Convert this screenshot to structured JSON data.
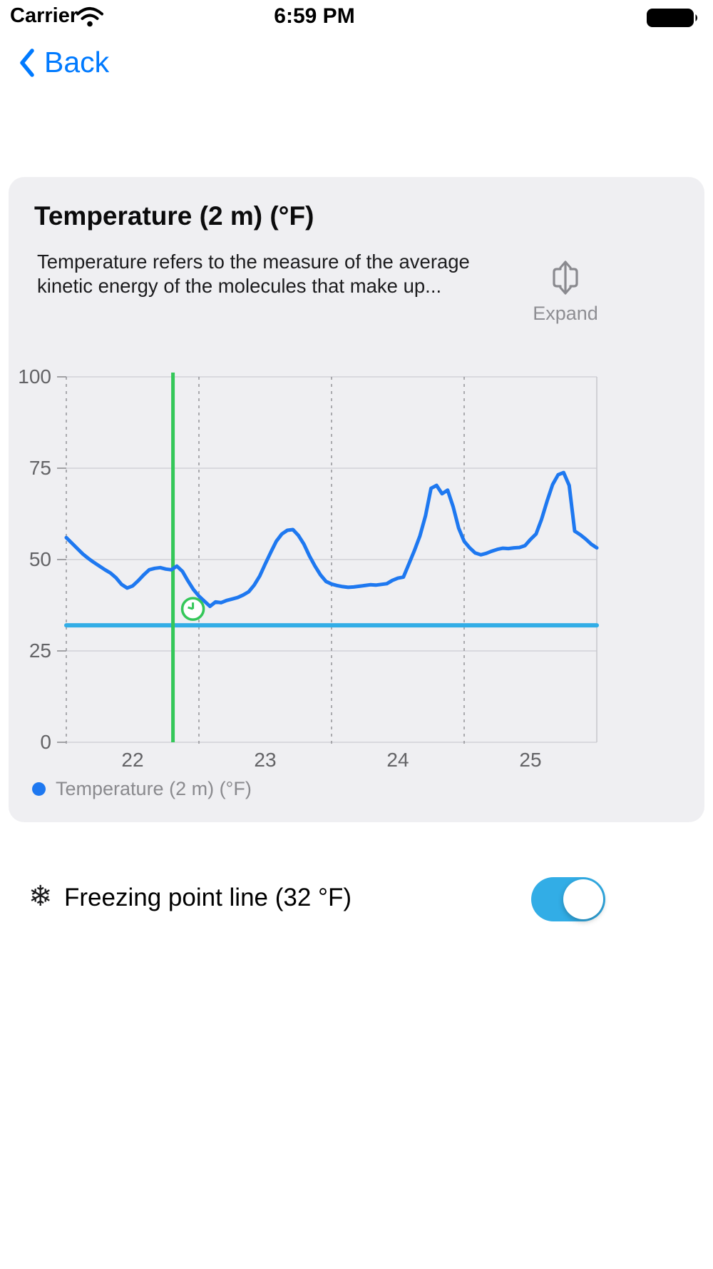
{
  "status_bar": {
    "carrier": "Carrier",
    "time": "6:59 PM",
    "battery_level": "full"
  },
  "nav": {
    "back_label": "Back"
  },
  "card": {
    "title": "Temperature (2 m) (°F)",
    "description": "Temperature refers to the measure of the average kinetic energy of the molecules that make up...",
    "expand_label": "Expand",
    "legend_label": "Temperature (2 m) (°F)"
  },
  "freezing_row": {
    "label": "Freezing point line (32 °F)",
    "toggle_on": true
  },
  "colors": {
    "accent_blue": "#007AFF",
    "line_blue": "#1E78F0",
    "cyan": "#32ADE6",
    "green": "#34C759",
    "gray_text": "#8E8E93",
    "card_bg": "#EFEFF2"
  },
  "chart_data": {
    "type": "line",
    "title": "Temperature (2 m) (°F)",
    "xlabel": "",
    "ylabel": "",
    "ylim": [
      0,
      100
    ],
    "y_ticks": [
      0,
      25,
      50,
      75,
      100
    ],
    "x_tick_labels": [
      "22",
      "23",
      "24",
      "25"
    ],
    "x_start": {
      "day": 22,
      "hour": 0
    },
    "hours_per_point": 1,
    "grid": {
      "horizontal": "solid",
      "vertical_day_boundaries": "dashed"
    },
    "legend_position": "bottom-left",
    "series": [
      {
        "name": "Temperature (2 m) (°F)",
        "color": "#1E78F0",
        "values": [
          56,
          54.5,
          53,
          51.5,
          50.3,
          49.2,
          48.2,
          47.2,
          46.3,
          45,
          43.2,
          42.2,
          42.8,
          44.2,
          45.8,
          47.2,
          47.6,
          47.8,
          47.4,
          47.2,
          48.2,
          46.8,
          44.2,
          41.8,
          40,
          38.6,
          37.2,
          38.4,
          38.2,
          38.8,
          39.2,
          39.6,
          40.3,
          41.2,
          43,
          45.5,
          48.8,
          52,
          55,
          57,
          58,
          58.2,
          56.6,
          54.2,
          51,
          48.2,
          45.8,
          44,
          43.3,
          42.9,
          42.6,
          42.4,
          42.5,
          42.7,
          42.9,
          43.1,
          43,
          43.2,
          43.4,
          44.3,
          44.9,
          45.2,
          48.8,
          52.5,
          56.5,
          62,
          69.5,
          70.3,
          68,
          69,
          64.5,
          58.6,
          55,
          53.2,
          51.8,
          51.3,
          51.7,
          52.3,
          52.8,
          53.1,
          53,
          53.2,
          53.3,
          53.8,
          55.5,
          57,
          61,
          66,
          70.5,
          73.2,
          73.8,
          70.3,
          57.8,
          56.8,
          55.6,
          54.2,
          53.2
        ]
      }
    ],
    "freezing_line": {
      "value": 32,
      "color": "#32ADE6",
      "visible": true
    },
    "now_marker": {
      "day": 22,
      "hour": 19.3,
      "color": "#34C759",
      "clock_icon": true,
      "icon_y_value": 36.5
    }
  }
}
